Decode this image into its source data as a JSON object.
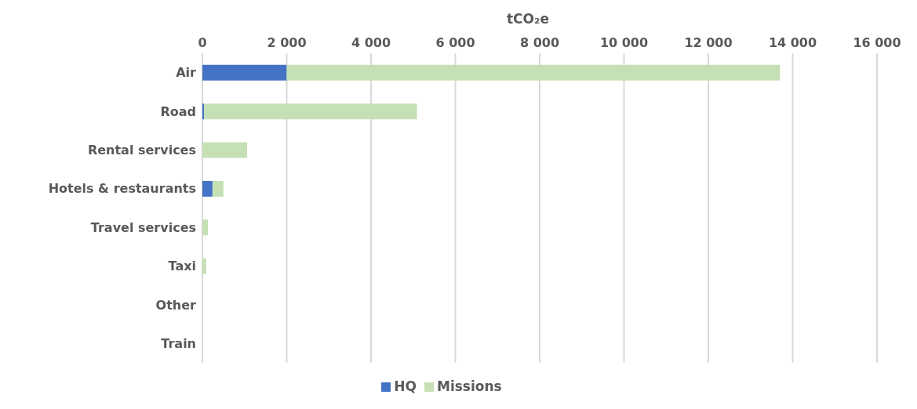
{
  "chart_data": {
    "type": "bar",
    "orientation": "horizontal",
    "stacked": true,
    "xlabel": "tCO₂e",
    "categories": [
      "Air",
      "Road",
      "Rental services",
      "Hotels & restaurants",
      "Travel services",
      "Taxi",
      "Other",
      "Train"
    ],
    "series": [
      {
        "name": "HQ",
        "color": "#4472c4",
        "values": [
          2000,
          40,
          0,
          240,
          0,
          0,
          0,
          0
        ]
      },
      {
        "name": "Missions",
        "color": "#c5e0b4",
        "values": [
          11700,
          5050,
          1060,
          260,
          130,
          90,
          0,
          0
        ]
      }
    ],
    "xlim": [
      0,
      16000
    ],
    "xticks": [
      0,
      {
        "value": 2000,
        "label": "2 000"
      },
      {
        "value": 4000,
        "label": "4 000"
      },
      {
        "value": 6000,
        "label": "6 000"
      },
      {
        "value": 8000,
        "label": "8 000"
      },
      {
        "value": 10000,
        "label": "10 000"
      },
      {
        "value": 12000,
        "label": "12 000"
      },
      {
        "value": 14000,
        "label": "14 000"
      },
      {
        "value": 16000,
        "label": "16 000"
      }
    ],
    "grid": "x",
    "legend": "bottom"
  }
}
